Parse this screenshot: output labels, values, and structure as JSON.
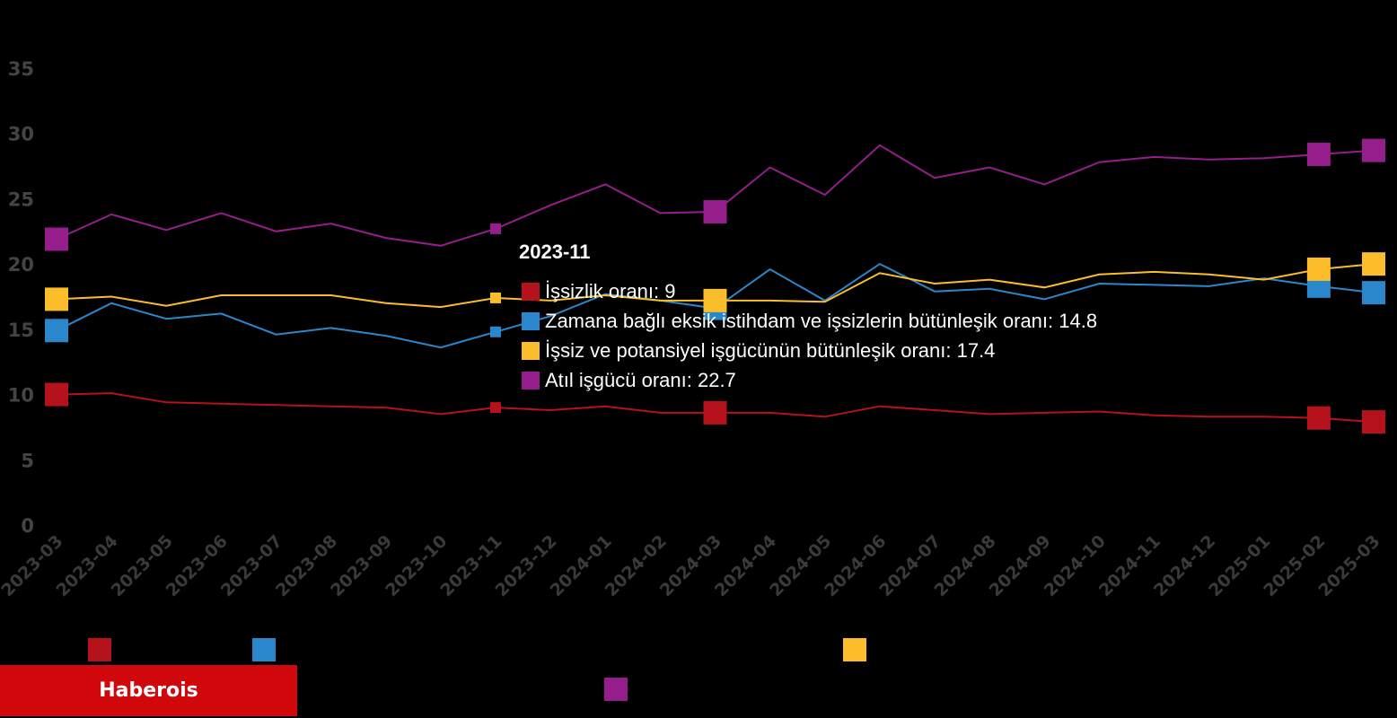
{
  "chart_data": {
    "type": "line",
    "x": [
      "2023-03",
      "2023-04",
      "2023-05",
      "2023-06",
      "2023-07",
      "2023-08",
      "2023-09",
      "2023-10",
      "2023-11",
      "2023-12",
      "2024-01",
      "2024-02",
      "2024-03",
      "2024-04",
      "2024-05",
      "2024-06",
      "2024-07",
      "2024-08",
      "2024-09",
      "2024-10",
      "2024-11",
      "2024-12",
      "2025-01",
      "2025-02",
      "2025-03"
    ],
    "ylim": [
      0,
      35
    ],
    "yticks": [
      0,
      5,
      10,
      15,
      20,
      25,
      30,
      35
    ],
    "grid": false,
    "series": [
      {
        "name": "İşsizlik oranı",
        "color": "#b5121b",
        "values": [
          10.0,
          10.1,
          9.4,
          9.3,
          9.2,
          9.1,
          9.0,
          8.5,
          9.0,
          8.8,
          9.1,
          8.6,
          8.6,
          8.6,
          8.3,
          9.1,
          8.8,
          8.5,
          8.6,
          8.7,
          8.4,
          8.3,
          8.3,
          8.2,
          7.9
        ],
        "markers": [
          0,
          8,
          12,
          23,
          24
        ]
      },
      {
        "name": "Zamana bağlı eksik istihdam ve işsizlerin bütünleşik oranı",
        "color": "#2b87cc",
        "values": [
          14.9,
          17.0,
          15.8,
          16.2,
          14.6,
          15.1,
          14.5,
          13.6,
          14.8,
          16.0,
          17.7,
          17.2,
          16.6,
          19.6,
          17.2,
          20.0,
          17.9,
          18.1,
          17.3,
          18.5,
          18.4,
          18.3,
          18.9,
          18.3,
          17.8
        ],
        "markers": [
          0,
          8,
          12,
          23,
          24
        ]
      },
      {
        "name": "İşsiz ve potansiyel işgücünün bütünleşik oranı",
        "color": "#fbbd2a",
        "values": [
          17.3,
          17.5,
          16.8,
          17.6,
          17.6,
          17.6,
          17.0,
          16.7,
          17.4,
          17.2,
          17.6,
          17.2,
          17.2,
          17.2,
          17.1,
          19.3,
          18.5,
          18.8,
          18.2,
          19.2,
          19.4,
          19.2,
          18.8,
          19.6,
          20.0
        ],
        "markers": [
          0,
          8,
          12,
          23,
          24
        ]
      },
      {
        "name": "Atıl işgücü oranı",
        "color": "#961d8c",
        "values": [
          21.9,
          23.8,
          22.6,
          23.9,
          22.5,
          23.1,
          22.0,
          21.4,
          22.7,
          24.5,
          26.1,
          23.9,
          24.0,
          27.4,
          25.3,
          29.1,
          26.6,
          27.4,
          26.1,
          27.8,
          28.2,
          28.0,
          28.1,
          28.4,
          28.7
        ],
        "markers": [
          0,
          8,
          12,
          23,
          24
        ]
      }
    ],
    "tooltip": {
      "title": "2023-11",
      "rows": [
        {
          "label": "İşsizlik oranı: 9",
          "color": "#b5121b"
        },
        {
          "label": "Zamana bağlı eksik istihdam ve işsizlerin bütünleşik oranı: 14.8",
          "color": "#2b87cc"
        },
        {
          "label": "İşsiz ve potansiyel işgücünün bütünleşik oranı: 17.4",
          "color": "#fbbd2a"
        },
        {
          "label": "Atıl işgücü oranı: 22.7",
          "color": "#961d8c"
        }
      ]
    },
    "legend_colors": [
      "#b5121b",
      "#2b87cc",
      "#fbbd2a",
      "#961d8c"
    ]
  },
  "brand": {
    "label": "Haberois",
    "color": "#d0080c"
  }
}
